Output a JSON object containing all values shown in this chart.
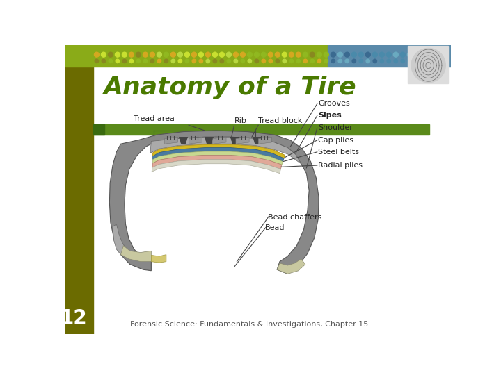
{
  "title": "Anatomy of a Tire",
  "subtitle": "Forensic Science: Fundamentals & Investigations, Chapter 15",
  "slide_number": "12",
  "bg_color": "#ffffff",
  "left_bar_color": "#6b6b00",
  "top_bar_color_left": "#8aaa1a",
  "top_bar_color_right": "#4a7a9b",
  "header_bar_color": "#6b8c1a",
  "title_color": "#4a7a00",
  "title_fontsize": 28,
  "subtitle_fontsize": 9,
  "slide_num_fontsize": 20,
  "green_bar_color": "#5a8a20",
  "labels": [
    "Tread area",
    "Rib",
    "Tread block",
    "Grooves",
    "Sipes",
    "Shoulder",
    "Cap plies",
    "Steel belts",
    "Radial plies",
    "Bead chaffers",
    "Bead"
  ]
}
